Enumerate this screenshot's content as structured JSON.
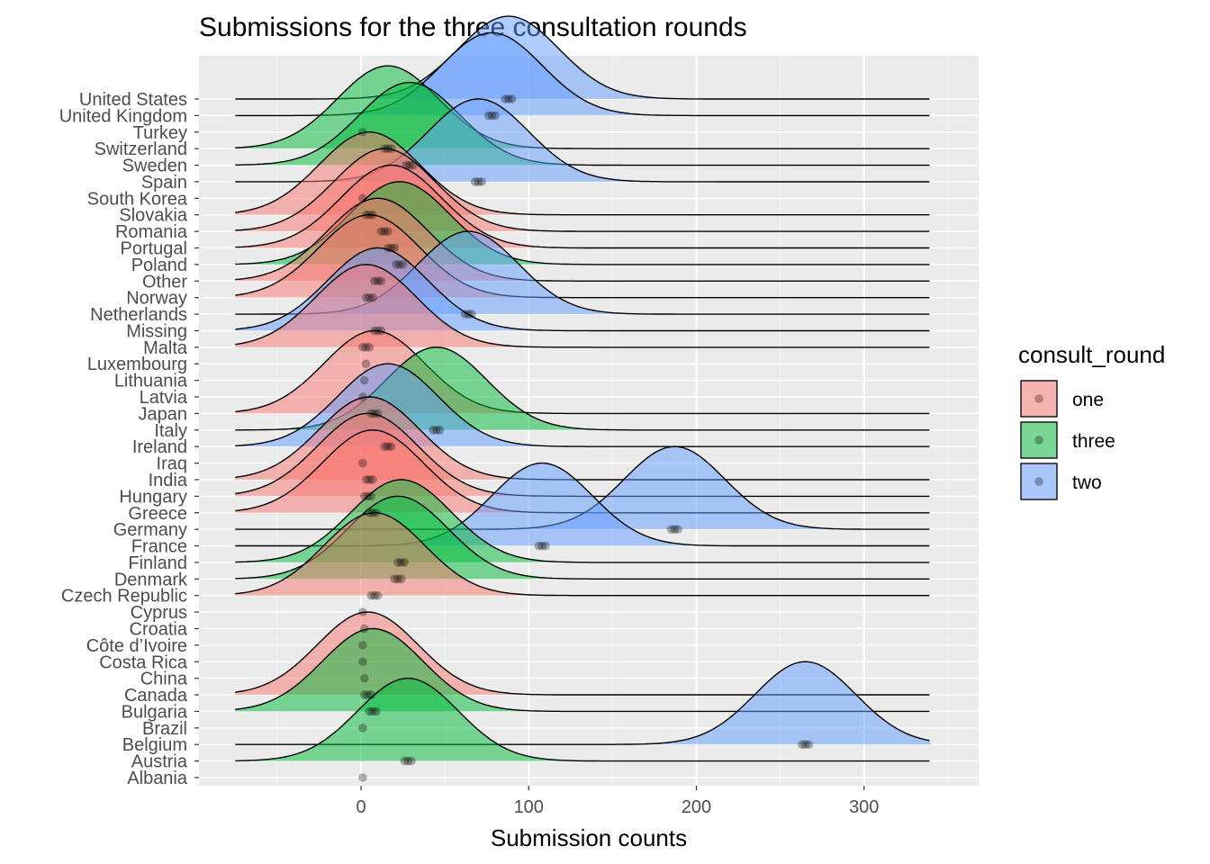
{
  "chart_data": {
    "type": "ridgeline",
    "title": "Submissions for the three consultation rounds",
    "xlabel": "Submission counts",
    "ylabel": "",
    "xlim": [
      -95,
      355
    ],
    "xticks": [
      0,
      100,
      200,
      300
    ],
    "density_range": [
      -75,
      340
    ],
    "grid": true,
    "legend": {
      "title": "consult_round",
      "position": "right",
      "entries": [
        {
          "key": "one",
          "label": "one",
          "color": "#F8766D"
        },
        {
          "key": "three",
          "label": "three",
          "color": "#00BA38"
        },
        {
          "key": "two",
          "label": "two",
          "color": "#619CFF"
        }
      ]
    },
    "countries": [
      "Albania",
      "Austria",
      "Belgium",
      "Brazil",
      "Bulgaria",
      "Canada",
      "China",
      "Costa Rica",
      "Côte d’Ivoire",
      "Croatia",
      "Cyprus",
      "Czech Republic",
      "Denmark",
      "Finland",
      "France",
      "Germany",
      "Greece",
      "Hungary",
      "India",
      "Iraq",
      "Ireland",
      "Italy",
      "Japan",
      "Latvia",
      "Lithuania",
      "Luxembourg",
      "Malta",
      "Missing",
      "Netherlands",
      "Norway",
      "Other",
      "Poland",
      "Portugal",
      "Romania",
      "Slovakia",
      "South Korea",
      "Spain",
      "Sweden",
      "Switzerland",
      "Turkey",
      "United Kingdom",
      "United States"
    ],
    "series": [
      {
        "country": "United States",
        "round": "two",
        "points": [
          86,
          88,
          90
        ]
      },
      {
        "country": "United Kingdom",
        "round": "two",
        "points": [
          76,
          78,
          80
        ]
      },
      {
        "country": "Turkey",
        "round": "three",
        "points": [
          1
        ]
      },
      {
        "country": "Switzerland",
        "round": "three",
        "points": [
          14,
          16,
          18
        ]
      },
      {
        "country": "Sweden",
        "round": "three",
        "points": [
          27,
          29,
          31
        ]
      },
      {
        "country": "Spain",
        "round": "two",
        "points": [
          68,
          70,
          72
        ]
      },
      {
        "country": "South Korea",
        "round": "one",
        "points": [
          1
        ]
      },
      {
        "country": "Slovakia",
        "round": "one",
        "points": [
          3,
          5,
          7
        ]
      },
      {
        "country": "Romania",
        "round": "one",
        "points": [
          12,
          14,
          16
        ]
      },
      {
        "country": "Portugal",
        "round": "one",
        "points": [
          16,
          18,
          20
        ]
      },
      {
        "country": "Poland",
        "round": "three",
        "points": [
          21,
          23,
          25
        ]
      },
      {
        "country": "Other",
        "round": "one",
        "points": [
          8,
          10,
          12
        ]
      },
      {
        "country": "Norway",
        "round": "one",
        "points": [
          3,
          5,
          7
        ]
      },
      {
        "country": "Netherlands",
        "round": "two",
        "points": [
          62,
          64,
          66
        ]
      },
      {
        "country": "Missing",
        "round": "two",
        "points": [
          8,
          10,
          12
        ]
      },
      {
        "country": "Malta",
        "round": "one",
        "points": [
          1,
          3,
          5
        ]
      },
      {
        "country": "Luxembourg",
        "round": "one",
        "points": [
          3
        ]
      },
      {
        "country": "Lithuania",
        "round": "one",
        "points": [
          2
        ]
      },
      {
        "country": "Latvia",
        "round": "one",
        "points": [
          1
        ]
      },
      {
        "country": "Japan",
        "round": "one",
        "points": [
          6,
          8,
          10
        ]
      },
      {
        "country": "Italy",
        "round": "three",
        "points": [
          43,
          45,
          47
        ]
      },
      {
        "country": "Ireland",
        "round": "two",
        "points": [
          14,
          16,
          18
        ]
      },
      {
        "country": "Iraq",
        "round": "one",
        "points": [
          1
        ]
      },
      {
        "country": "India",
        "round": "one",
        "points": [
          3,
          5,
          7
        ]
      },
      {
        "country": "Hungary",
        "round": "one",
        "points": [
          2,
          4,
          6
        ]
      },
      {
        "country": "Greece",
        "round": "one",
        "points": [
          5,
          7,
          9
        ]
      },
      {
        "country": "Germany",
        "round": "two",
        "points": [
          185,
          187,
          189
        ]
      },
      {
        "country": "France",
        "round": "two",
        "points": [
          106,
          108,
          110
        ]
      },
      {
        "country": "Finland",
        "round": "three",
        "points": [
          22,
          24,
          26
        ]
      },
      {
        "country": "Denmark",
        "round": "three",
        "points": [
          20,
          22,
          24
        ]
      },
      {
        "country": "Czech Republic",
        "round": "one",
        "points": [
          6,
          8,
          10
        ]
      },
      {
        "country": "Cyprus",
        "round": "one",
        "points": [
          1
        ]
      },
      {
        "country": "Croatia",
        "round": "one",
        "points": [
          2
        ]
      },
      {
        "country": "Côte d’Ivoire",
        "round": "one",
        "points": [
          1
        ]
      },
      {
        "country": "Costa Rica",
        "round": "one",
        "points": [
          1
        ]
      },
      {
        "country": "China",
        "round": "one",
        "points": [
          2
        ]
      },
      {
        "country": "Canada",
        "round": "one",
        "points": [
          2,
          4,
          6
        ]
      },
      {
        "country": "Bulgaria",
        "round": "three",
        "points": [
          5,
          7,
          9
        ]
      },
      {
        "country": "Brazil",
        "round": "one",
        "points": [
          1
        ]
      },
      {
        "country": "Belgium",
        "round": "two",
        "points": [
          263,
          265,
          267
        ]
      },
      {
        "country": "Austria",
        "round": "three",
        "points": [
          26,
          28,
          30
        ]
      },
      {
        "country": "Albania",
        "round": "one",
        "points": [
          1
        ]
      }
    ]
  }
}
